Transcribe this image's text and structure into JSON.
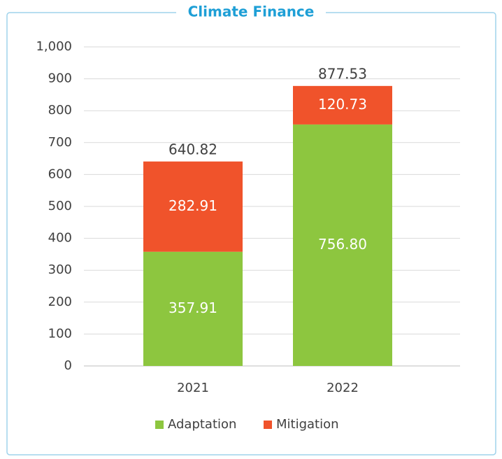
{
  "chart_data": {
    "type": "stacked_bar",
    "title": "Climate Finance",
    "categories": [
      "2021",
      "2022"
    ],
    "series": [
      {
        "name": "Adaptation",
        "color": "#8dc63f",
        "values": [
          357.91,
          756.8
        ],
        "value_labels": [
          "357.91",
          "756.80"
        ]
      },
      {
        "name": "Mitigation",
        "color": "#f0532b",
        "values": [
          282.91,
          120.73
        ]
      }
    ],
    "totals": [
      640.82,
      877.53
    ],
    "ylim": [
      0,
      1000
    ],
    "yticks": [
      0,
      100,
      200,
      300,
      400,
      500,
      600,
      700,
      800,
      900,
      {
        "value": 1000,
        "label": "1,000"
      }
    ],
    "grid": true,
    "legend": "bottom"
  }
}
